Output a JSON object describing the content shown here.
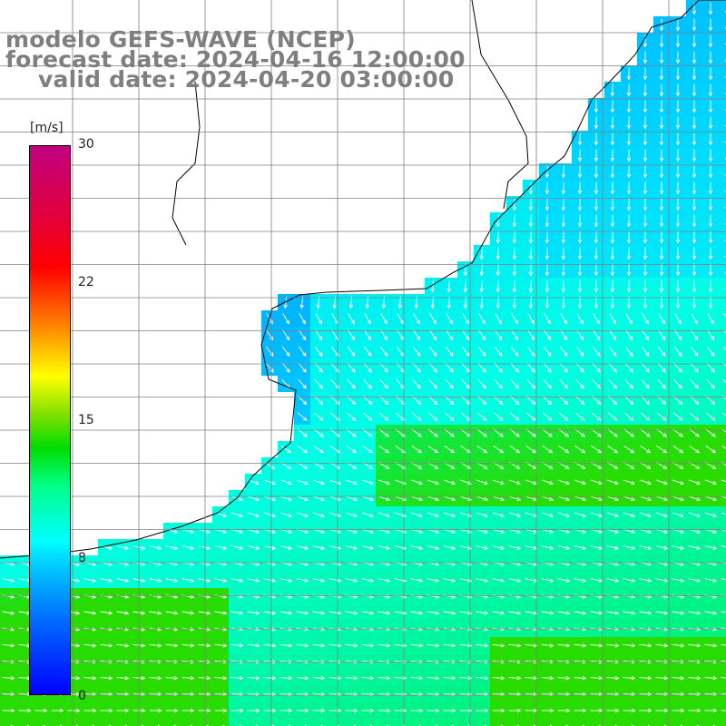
{
  "title": {
    "line1": "modelo GEFS-WAVE (NCEP)",
    "line2": "forecast date: 2024-04-16 12:00:00",
    "line3": "valid date: 2024-04-20 03:00:00"
  },
  "colorbar": {
    "units": "[m/s]",
    "ticks": [
      "30",
      "22",
      "15",
      "8",
      "0"
    ],
    "min": 0,
    "max": 30,
    "colors": [
      "#0000ff",
      "#00a0ff",
      "#00ffff",
      "#00e000",
      "#ffff00",
      "#ff6000",
      "#ff0000",
      "#c00080"
    ]
  },
  "map": {
    "field": "wind speed with direction arrows",
    "arrow_color": "#ffffff",
    "land_color": "#ffffff",
    "coastline_color": "#000000",
    "grid_color": "#808080"
  }
}
